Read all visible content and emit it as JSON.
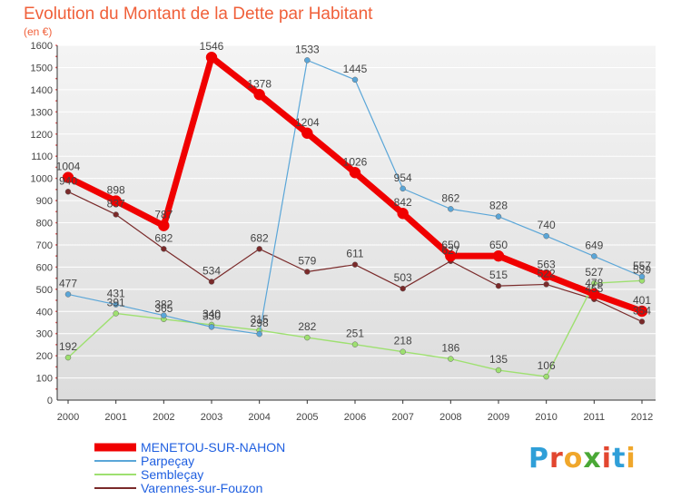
{
  "title": "Evolution du Montant de la Dette par Habitant",
  "unit": "(en €)",
  "colors": {
    "title": "#f0603a",
    "background_top": "#f2f2f2",
    "gridline": "#ffffff",
    "tick_text": "#444444",
    "legend_text": "#1f5fe0"
  },
  "brand": {
    "letters": [
      "P",
      "r",
      "o",
      "x",
      "i",
      "t",
      "i"
    ],
    "letter_colors": [
      "#2f9fd8",
      "#e2462f",
      "#f0a72b",
      "#4aa836",
      "#e2462f",
      "#2f9fd8",
      "#f0a72b"
    ]
  },
  "chart_data": {
    "type": "line",
    "title": "Evolution du Montant de la Dette par Habitant",
    "ylabel": "(en €)",
    "x": [
      "2000",
      "2001",
      "2002",
      "2003",
      "2004",
      "2005",
      "2006",
      "2007",
      "2008",
      "2009",
      "2010",
      "2011",
      "2012"
    ],
    "ylim": [
      0,
      1600
    ],
    "yticks": [
      0,
      100,
      200,
      300,
      400,
      500,
      600,
      700,
      800,
      900,
      1000,
      1100,
      1200,
      1300,
      1400,
      1500,
      1600
    ],
    "grid": true,
    "legend_position": "bottom-left",
    "series": [
      {
        "name": "Varennes-sur-Fouzon",
        "color": "#7a2a2a",
        "width": 1.2,
        "marker": 3,
        "values": [
          940,
          837,
          682,
          534,
          682,
          579,
          611,
          503,
          627,
          515,
          522,
          455,
          354
        ],
        "labels": [
          "940",
          "837",
          "682",
          "534",
          "682",
          "579",
          "611",
          "503",
          "627",
          "515",
          "522",
          "455",
          "354"
        ]
      },
      {
        "name": "Sembleçay",
        "color": "#9ee070",
        "width": 1.4,
        "marker": 3,
        "values": [
          192,
          391,
          365,
          340,
          315,
          282,
          251,
          218,
          186,
          135,
          106,
          527,
          539
        ],
        "labels": [
          "192",
          "391",
          "365",
          "340",
          "315",
          "282",
          "251",
          "218",
          "186",
          "135",
          "106",
          "527",
          "539"
        ]
      },
      {
        "name": "Parpeçay",
        "color": "#5aa6d8",
        "width": 1.2,
        "marker": 3,
        "values": [
          477,
          431,
          382,
          330,
          298,
          1533,
          1445,
          954,
          862,
          828,
          740,
          649,
          557
        ],
        "labels": [
          "477",
          "431",
          "382",
          "330",
          "298",
          "1533",
          "1445",
          "954",
          "862",
          "828",
          "740",
          "649",
          "557"
        ]
      },
      {
        "name": "MENETOU-SUR-NAHON",
        "color": "#f00000",
        "width": 7,
        "marker": 6,
        "values": [
          1004,
          898,
          787,
          1546,
          1378,
          1204,
          1026,
          842,
          650,
          650,
          563,
          478,
          401
        ],
        "labels": [
          "1004",
          "898",
          "787",
          "1546",
          "1378",
          "1204",
          "1026",
          "842",
          "650",
          "650",
          "563",
          "478",
          "401"
        ]
      }
    ],
    "legend": [
      "MENETOU-SUR-NAHON",
      "Parpeçay",
      "Sembleçay",
      "Varennes-sur-Fouzon"
    ]
  }
}
